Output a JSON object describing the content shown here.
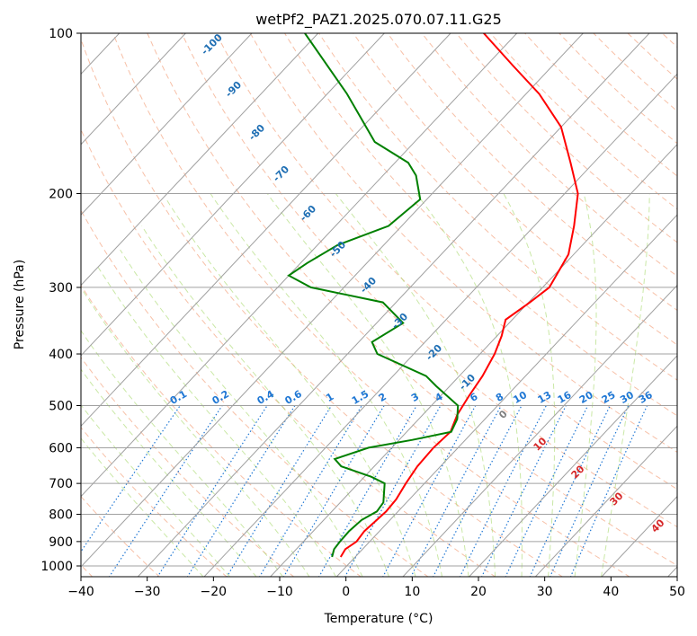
{
  "chart_data": {
    "type": "line",
    "title": "wetPf2_PAZ1.2025.070.07.11.G25",
    "xlabel": "Temperature (°C)",
    "ylabel": "Pressure (hPa)",
    "xlim": [
      -40,
      50
    ],
    "ylim": [
      1050,
      100
    ],
    "y_scale": "log",
    "skew": true,
    "grid": true,
    "x_ticks": [
      -40,
      -30,
      -20,
      -10,
      0,
      10,
      20,
      30,
      40,
      50
    ],
    "y_ticks": [
      1000,
      900,
      800,
      700,
      600,
      500,
      400,
      300,
      200,
      100
    ],
    "series": [
      {
        "color": "#ff0000",
        "points": [
          [
            962,
            -2.2
          ],
          [
            930,
            -2.6
          ],
          [
            900,
            -2.0
          ],
          [
            860,
            -2.3
          ],
          [
            820,
            -2.0
          ],
          [
            790,
            -1.8
          ],
          [
            750,
            -2.0
          ],
          [
            700,
            -2.8
          ],
          [
            650,
            -3.5
          ],
          [
            600,
            -3.7
          ],
          [
            560,
            -3.4
          ],
          [
            520,
            -4.8
          ],
          [
            480,
            -5.7
          ],
          [
            440,
            -6.5
          ],
          [
            400,
            -7.8
          ],
          [
            370,
            -9.3
          ],
          [
            345,
            -11.0
          ],
          [
            320,
            -9.8
          ],
          [
            300,
            -9.0
          ],
          [
            260,
            -10.8
          ],
          [
            230,
            -14.0
          ],
          [
            200,
            -18.0
          ],
          [
            175,
            -23.5
          ],
          [
            150,
            -30.0
          ],
          [
            130,
            -38.0
          ],
          [
            115,
            -46.0
          ],
          [
            100,
            -55.0
          ]
        ]
      },
      {
        "color": "#008000",
        "points": [
          [
            962,
            -3.5
          ],
          [
            930,
            -4.3
          ],
          [
            900,
            -4.5
          ],
          [
            860,
            -4.6
          ],
          [
            820,
            -4.3
          ],
          [
            790,
            -3.2
          ],
          [
            760,
            -3.5
          ],
          [
            700,
            -6.0
          ],
          [
            680,
            -9.0
          ],
          [
            650,
            -15.0
          ],
          [
            630,
            -17.0
          ],
          [
            600,
            -13.5
          ],
          [
            580,
            -8.0
          ],
          [
            560,
            -3.3
          ],
          [
            530,
            -4.2
          ],
          [
            500,
            -6.0
          ],
          [
            460,
            -12.0
          ],
          [
            440,
            -15.0
          ],
          [
            400,
            -25.5
          ],
          [
            380,
            -28.0
          ],
          [
            350,
            -26.0
          ],
          [
            320,
            -32.0
          ],
          [
            300,
            -45.0
          ],
          [
            285,
            -50.0
          ],
          [
            270,
            -49.0
          ],
          [
            250,
            -47.0
          ],
          [
            230,
            -42.0
          ],
          [
            205,
            -41.0
          ],
          [
            185,
            -45.0
          ],
          [
            175,
            -48.0
          ],
          [
            160,
            -56.0
          ],
          [
            130,
            -67.0
          ],
          [
            100,
            -82.0
          ]
        ]
      }
    ],
    "dry_adiabat_labels": [
      "-100",
      "-90",
      "-80",
      "-70",
      "-60",
      "-50",
      "-40",
      "-30",
      "-20",
      "-10",
      "0",
      "10",
      "20",
      "30",
      "40"
    ],
    "mixing_ratio_labels": [
      "0.1",
      "0.2",
      "0.4",
      "0.6",
      "1",
      "1.5",
      "2",
      "3",
      "4",
      "6",
      "8",
      "10",
      "13",
      "16",
      "20",
      "25",
      "30",
      "36"
    ],
    "colors": {
      "temperature": "#ff0000",
      "dewpoint": "#008000",
      "dry_adiabats": "#f4a582",
      "moist_adiabats": "#a6d96a",
      "mixing_ratio": "#1f77d4",
      "isotherms": "#a0a0a0",
      "adiabat_label_cold": "#1f6fb4",
      "adiabat_label_warm": "#d62728"
    }
  }
}
